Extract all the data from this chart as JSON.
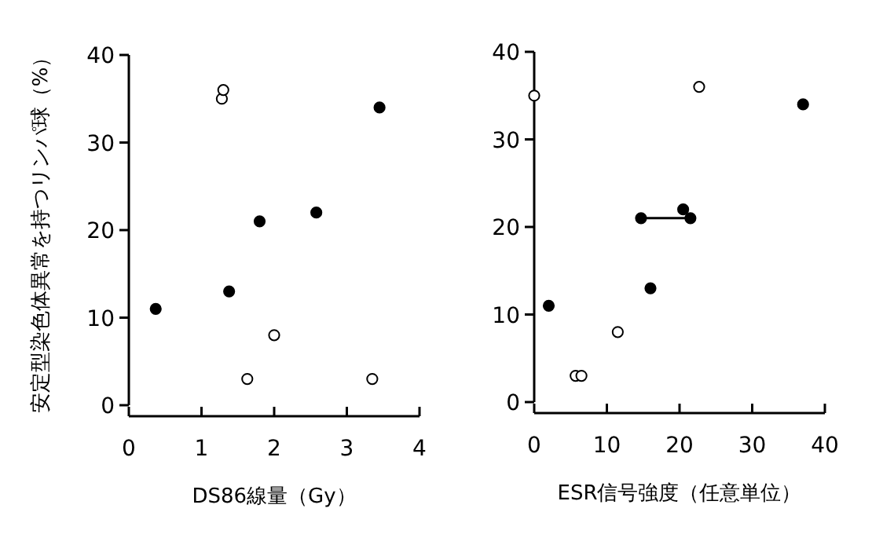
{
  "chart_data": [
    {
      "type": "scatter",
      "xlabel": "DS86線量（Gy）",
      "ylabel": "安定型染色体異常を持つリンパ球（%）",
      "xlim": [
        0,
        4
      ],
      "ylim": [
        0,
        40
      ],
      "xticks": [
        0,
        1,
        2,
        3,
        4
      ],
      "yticks": [
        0,
        10,
        20,
        30,
        40
      ],
      "marker": "circle",
      "series": [
        {
          "color": "#000000",
          "x": [
            0.37,
            1.38,
            1.8,
            2.58,
            3.45
          ],
          "values": [
            11,
            13,
            21,
            22,
            34
          ]
        },
        {
          "color": "#ffffff",
          "x": [
            1.28,
            1.3,
            1.63,
            2.0,
            3.35
          ],
          "values": [
            35,
            36,
            3,
            8,
            3
          ]
        }
      ]
    },
    {
      "type": "scatter",
      "xlabel": "ESR信号強度（任意単位）",
      "xlim": [
        0,
        40
      ],
      "ylim": [
        0,
        40
      ],
      "xticks": [
        0,
        10,
        20,
        30,
        40
      ],
      "yticks": [
        0,
        10,
        20,
        30,
        40
      ],
      "marker": "circle",
      "series": [
        {
          "color": "#000000",
          "x": [
            2,
            16,
            14.7,
            21.5,
            20.5,
            37
          ],
          "values": [
            11,
            13,
            21,
            21,
            22,
            34
          ]
        },
        {
          "color": "#ffffff",
          "x": [
            0,
            5.7,
            6.5,
            11.5,
            22.7
          ],
          "values": [
            35,
            3,
            3,
            8,
            36
          ]
        },
        {
          "type": "line",
          "marker": "none",
          "color": "#000000",
          "x": [
            14.7,
            21.5
          ],
          "values": [
            21,
            21
          ]
        }
      ]
    }
  ]
}
